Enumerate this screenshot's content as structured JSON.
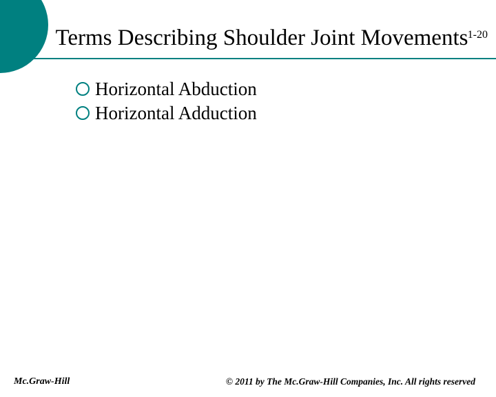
{
  "slide_number": "1-20",
  "title": "Terms Describing Shoulder Joint Movements",
  "bullets": {
    "item1": "Horizontal Abduction",
    "item2": "Horizontal Adduction"
  },
  "footer": {
    "publisher": "Mc.Graw-Hill",
    "copyright": "© 2011 by The Mc.Graw-Hill Companies, Inc. All rights reserved"
  },
  "colors": {
    "accent": "#008080",
    "text": "#000000",
    "background": "#ffffff"
  }
}
